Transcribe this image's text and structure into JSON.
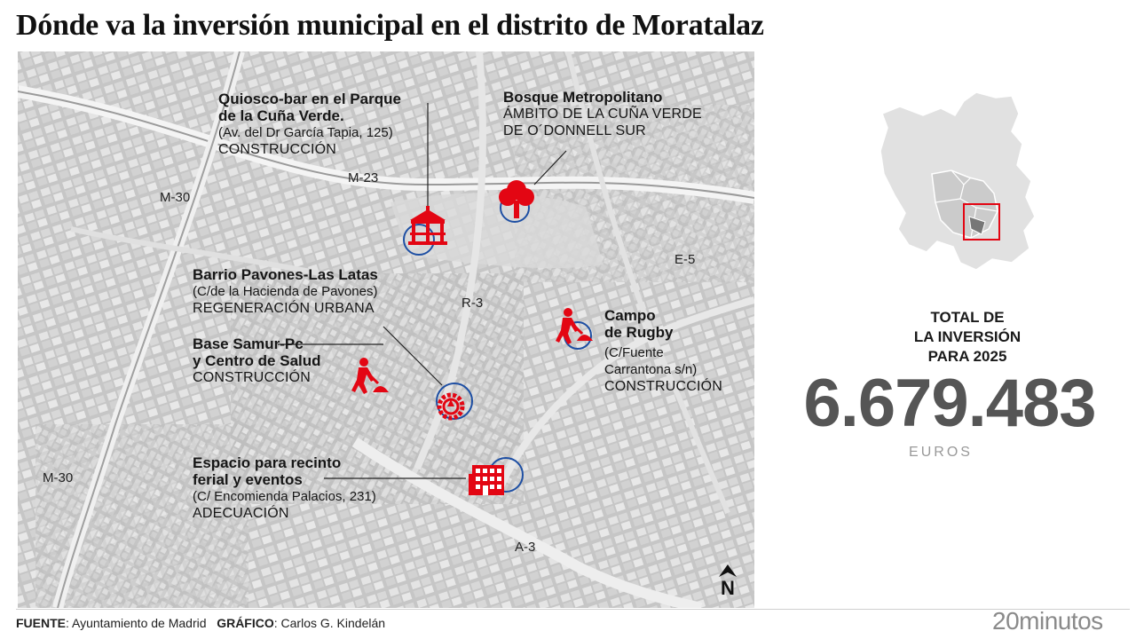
{
  "title": "Dónde va la inversión municipal en el distrito de Moratalaz",
  "map": {
    "roads": [
      "M-30",
      "M-23",
      "E-5",
      "R-3",
      "M-30",
      "A-3"
    ],
    "projects": [
      {
        "name_1": "Quiosco-bar en el Parque",
        "name_2": "de la Cuña Verde.",
        "address": "(Av. del Dr García Tapia, 125)",
        "type": "CONSTRUCCIÓN",
        "icon": "kiosk-icon"
      },
      {
        "name_1": "Bosque Metropolitano",
        "detail_1": "ÁMBITO DE LA CUÑA VERDE",
        "detail_2": "DE O´DONNELL SUR",
        "icon": "tree-icon"
      },
      {
        "name_1": "Barrio Pavones-Las Latas",
        "address": "(C/de la Hacienda de Pavones)",
        "type": "REGENERACIÓN URBANA",
        "icon": "regeneration-icon"
      },
      {
        "name_1": "Base Samur-Pc",
        "name_2": "y Centro de Salud",
        "type": "CONSTRUCCIÓN",
        "icon": "worker-icon"
      },
      {
        "name_1": "Campo",
        "name_2": "de Rugby",
        "address_1": "(C/Fuente",
        "address_2": "Carrantona s/n)",
        "type": "CONSTRUCCIÓN",
        "icon": "worker-icon"
      },
      {
        "name_1": "Espacio para recinto",
        "name_2": "ferial y eventos",
        "address": "(C/ Encomienda Palacios, 231)",
        "type": "ADECUACIÓN",
        "icon": "building-icon"
      }
    ],
    "north_label": "N",
    "accent_red": "#e30613",
    "accent_blue": "#1e4fa3"
  },
  "total": {
    "label_1": "TOTAL DE",
    "label_2": "LA INVERSIÓN",
    "label_3": "PARA 2025",
    "value": "6.679.483",
    "unit": "EUROS"
  },
  "footer": {
    "source_label": "FUENTE",
    "source_value": ": Ayuntamiento de Madrid",
    "graphic_label": "GRÁFICO",
    "graphic_value": ": Carlos G. Kindelán",
    "brand": "20minutos"
  }
}
